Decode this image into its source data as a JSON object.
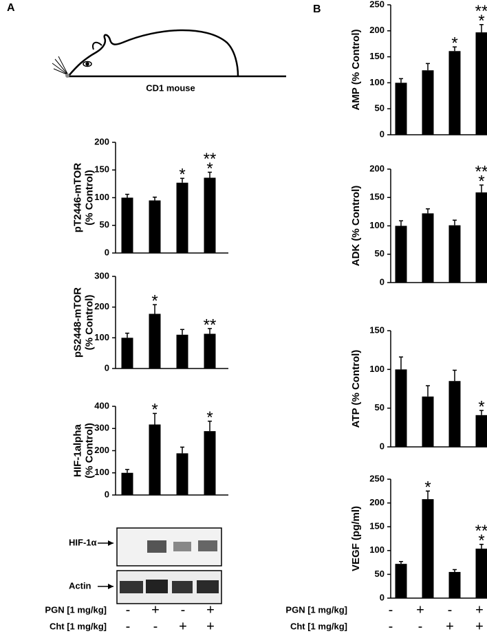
{
  "panel_labels": [
    "A",
    "B"
  ],
  "mouse_label": "CD1 mouse",
  "blot_labels": [
    "HIF-1α",
    "Actin"
  ],
  "treatments": {
    "panel_a": [
      {
        "label": "PGN [1 mg/kg]",
        "signs": [
          "-",
          "+",
          "-",
          "+"
        ]
      },
      {
        "label": "Cht [1 mg/kg]",
        "signs": [
          "-",
          "-",
          "+",
          "+"
        ]
      }
    ],
    "panel_b": [
      {
        "label": "PGN [1 mg/kg]",
        "signs": [
          "-",
          "+",
          "-",
          "+"
        ]
      },
      {
        "label": "Cht [1 mg/kg]",
        "signs": [
          "-",
          "-",
          "+",
          "+"
        ]
      }
    ]
  },
  "chart_data": [
    {
      "type": "bar",
      "ylabel": [
        "pT2446-mTOR",
        "(% Control)"
      ],
      "ylim": [
        0,
        200
      ],
      "yticks": [
        0,
        50,
        100,
        150,
        200
      ],
      "color": "#000000",
      "values": [
        100,
        95,
        127,
        136
      ],
      "errors": [
        6,
        6,
        8,
        10
      ],
      "annotations": [
        [],
        [],
        [
          "*"
        ],
        [
          "**",
          "*"
        ]
      ]
    },
    {
      "type": "bar",
      "ylabel": [
        "pS2448-mTOR",
        "(% Control)"
      ],
      "ylim": [
        0,
        300
      ],
      "yticks": [
        0,
        100,
        200,
        300
      ],
      "color": "#000000",
      "values": [
        100,
        178,
        110,
        113
      ],
      "errors": [
        15,
        30,
        17,
        17
      ],
      "annotations": [
        [],
        [
          "*"
        ],
        [],
        [
          "**"
        ]
      ]
    },
    {
      "type": "bar",
      "ylabel": [
        "HIF-1alpha",
        "(% Control)"
      ],
      "ylim": [
        0,
        400
      ],
      "yticks": [
        0,
        100,
        200,
        300,
        400
      ],
      "color": "#000000",
      "values": [
        100,
        318,
        188,
        288
      ],
      "errors": [
        15,
        50,
        28,
        45
      ],
      "annotations": [
        [],
        [
          "*"
        ],
        [],
        [
          "*"
        ]
      ]
    },
    {
      "type": "bar",
      "ylabel": [
        "AMP (% Control)"
      ],
      "ylim": [
        0,
        250
      ],
      "yticks": [
        0,
        50,
        100,
        150,
        200,
        250
      ],
      "color": "#000000",
      "values": [
        100,
        124,
        161,
        197
      ],
      "errors": [
        8,
        13,
        8,
        15
      ],
      "annotations": [
        [],
        [],
        [
          "*"
        ],
        [
          "**",
          "*"
        ]
      ]
    },
    {
      "type": "bar",
      "ylabel": [
        "ADK (% Control)"
      ],
      "ylim": [
        0,
        200
      ],
      "yticks": [
        0,
        50,
        100,
        150,
        200
      ],
      "color": "#000000",
      "values": [
        100,
        122,
        101,
        159
      ],
      "errors": [
        9,
        8,
        9,
        13
      ],
      "annotations": [
        [],
        [],
        [],
        [
          "**",
          "*"
        ]
      ]
    },
    {
      "type": "bar",
      "ylabel": [
        "ATP (% Control)"
      ],
      "ylim": [
        0,
        150
      ],
      "yticks": [
        0,
        50,
        100,
        150
      ],
      "color": "#000000",
      "values": [
        100,
        65,
        85,
        41
      ],
      "errors": [
        16,
        14,
        14,
        6
      ],
      "annotations": [
        [],
        [],
        [],
        [
          "*"
        ]
      ]
    },
    {
      "type": "bar",
      "ylabel": [
        "VEGF (pg/ml)"
      ],
      "ylim": [
        0,
        250
      ],
      "yticks": [
        0,
        50,
        100,
        150,
        200,
        250
      ],
      "color": "#000000",
      "values": [
        72,
        208,
        55,
        104
      ],
      "errors": [
        5,
        17,
        5,
        9
      ],
      "annotations": [
        [],
        [
          "*"
        ],
        [],
        [
          "**",
          "*"
        ]
      ]
    }
  ]
}
